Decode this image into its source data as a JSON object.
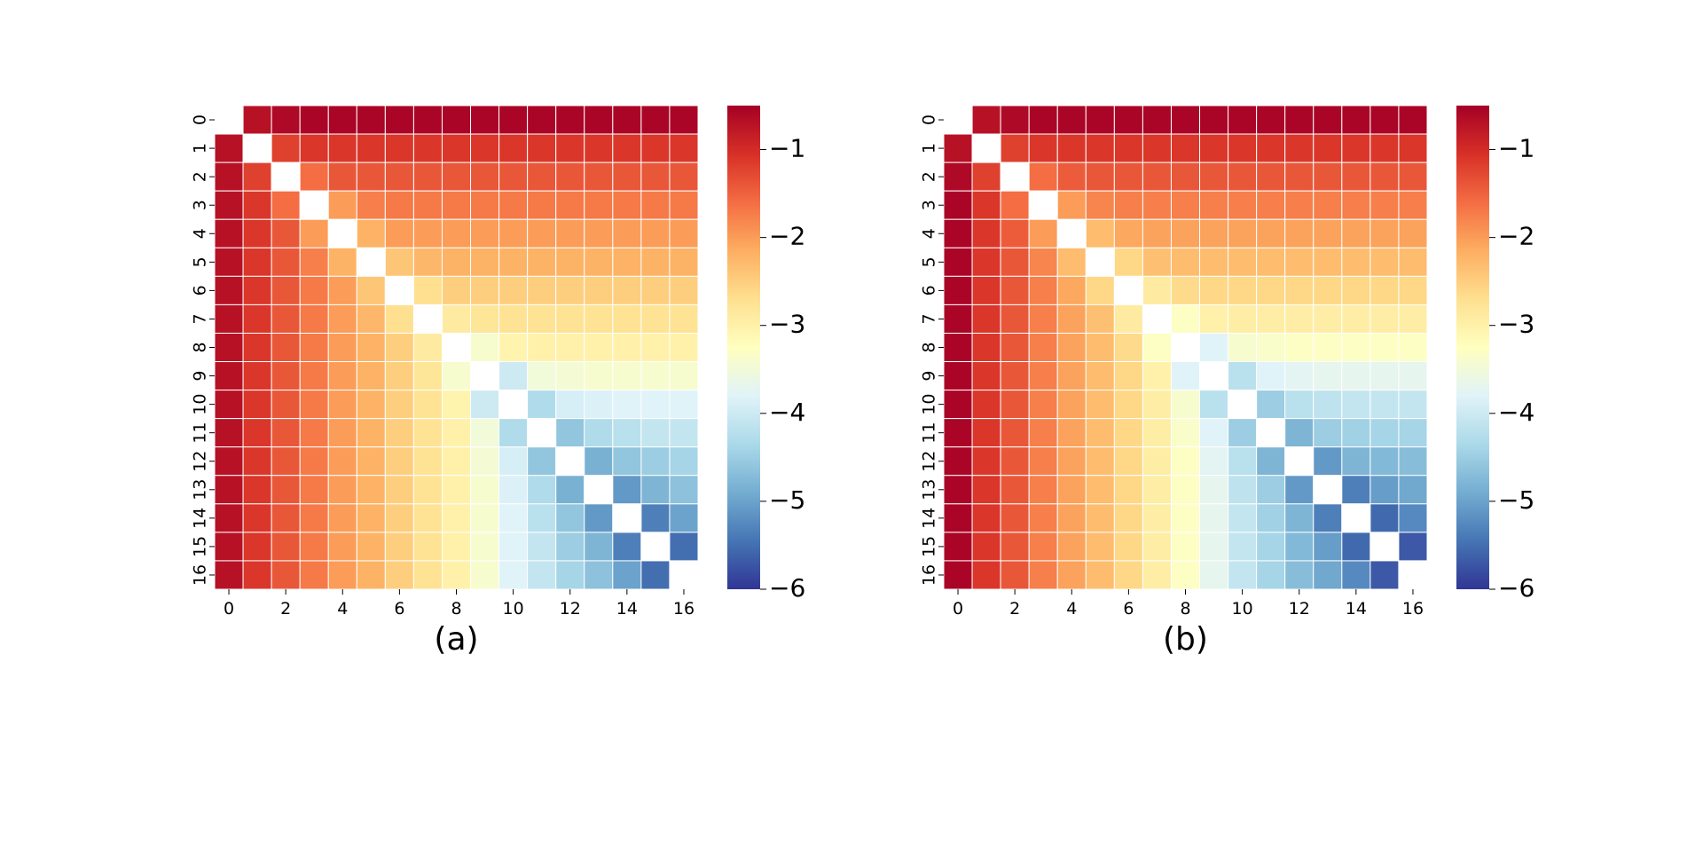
{
  "chart_data": [
    {
      "type": "heatmap",
      "caption": "(a)",
      "x_tick_labels": [
        "0",
        "2",
        "4",
        "6",
        "8",
        "10",
        "12",
        "14",
        "16"
      ],
      "y_tick_labels": [
        "0",
        "1",
        "2",
        "3",
        "4",
        "5",
        "6",
        "7",
        "8",
        "9",
        "10",
        "11",
        "12",
        "13",
        "14",
        "15",
        "16"
      ],
      "colorbar": {
        "colormap": "RdYlBu",
        "range": [
          -6,
          -0.5
        ],
        "ticks": [
          "−1",
          "−2",
          "−3",
          "−4",
          "−5",
          "−6"
        ],
        "tick_values": [
          -1,
          -2,
          -3,
          -4,
          -5,
          -6
        ]
      },
      "grid": true,
      "diagonal_masked": true,
      "values": [
        [
          null,
          -0.7,
          -0.6,
          -0.55,
          -0.55,
          -0.55,
          -0.55,
          -0.55,
          -0.55,
          -0.55,
          -0.55,
          -0.55,
          -0.55,
          -0.55,
          -0.55,
          -0.55,
          -0.55
        ],
        [
          -0.7,
          null,
          -1.2,
          -1.1,
          -1.1,
          -1.1,
          -1.1,
          -1.1,
          -1.1,
          -1.1,
          -1.1,
          -1.1,
          -1.1,
          -1.1,
          -1.1,
          -1.1,
          -1.1
        ],
        [
          -0.7,
          -1.2,
          null,
          -1.6,
          -1.4,
          -1.4,
          -1.4,
          -1.4,
          -1.4,
          -1.4,
          -1.4,
          -1.4,
          -1.4,
          -1.4,
          -1.4,
          -1.4,
          -1.4
        ],
        [
          -0.7,
          -1.1,
          -1.6,
          null,
          -2.0,
          -1.75,
          -1.7,
          -1.7,
          -1.7,
          -1.7,
          -1.7,
          -1.7,
          -1.7,
          -1.7,
          -1.7,
          -1.7,
          -1.7
        ],
        [
          -0.7,
          -1.1,
          -1.4,
          -2.0,
          null,
          -2.2,
          -2.0,
          -2.0,
          -2.0,
          -2.0,
          -2.0,
          -2.0,
          -2.0,
          -2.0,
          -2.0,
          -2.0,
          -2.0
        ],
        [
          -0.7,
          -1.1,
          -1.4,
          -1.75,
          -2.2,
          null,
          -2.4,
          -2.25,
          -2.2,
          -2.2,
          -2.2,
          -2.2,
          -2.2,
          -2.2,
          -2.2,
          -2.2,
          -2.2
        ],
        [
          -0.7,
          -1.1,
          -1.4,
          -1.7,
          -2.0,
          -2.4,
          null,
          -2.7,
          -2.5,
          -2.5,
          -2.5,
          -2.5,
          -2.5,
          -2.5,
          -2.5,
          -2.5,
          -2.5
        ],
        [
          -0.7,
          -1.1,
          -1.4,
          -1.7,
          -2.0,
          -2.25,
          -2.7,
          null,
          -2.9,
          -2.8,
          -2.75,
          -2.75,
          -2.75,
          -2.75,
          -2.75,
          -2.75,
          -2.75
        ],
        [
          -0.7,
          -1.1,
          -1.4,
          -1.7,
          -2.0,
          -2.2,
          -2.5,
          -2.9,
          null,
          -3.4,
          -3.05,
          -3.0,
          -3.0,
          -3.0,
          -3.0,
          -3.0,
          -3.0
        ],
        [
          -0.7,
          -1.1,
          -1.4,
          -1.7,
          -2.0,
          -2.2,
          -2.5,
          -2.8,
          -3.4,
          null,
          -4.0,
          -3.5,
          -3.45,
          -3.4,
          -3.4,
          -3.4,
          -3.4
        ],
        [
          -0.7,
          -1.1,
          -1.4,
          -1.7,
          -2.0,
          -2.2,
          -2.5,
          -2.75,
          -3.05,
          -4.0,
          null,
          -4.3,
          -3.9,
          -3.85,
          -3.8,
          -3.8,
          -3.8
        ],
        [
          -0.7,
          -1.1,
          -1.4,
          -1.7,
          -2.0,
          -2.2,
          -2.5,
          -2.75,
          -3.0,
          -3.5,
          -4.3,
          null,
          -4.6,
          -4.3,
          -4.2,
          -4.1,
          -4.1
        ],
        [
          -0.7,
          -1.1,
          -1.4,
          -1.7,
          -2.0,
          -2.2,
          -2.5,
          -2.75,
          -3.0,
          -3.45,
          -3.9,
          -4.6,
          null,
          -4.85,
          -4.6,
          -4.5,
          -4.4
        ],
        [
          -0.7,
          -1.1,
          -1.4,
          -1.7,
          -2.0,
          -2.2,
          -2.5,
          -2.75,
          -3.0,
          -3.4,
          -3.85,
          -4.3,
          -4.85,
          null,
          -5.1,
          -4.8,
          -4.65
        ],
        [
          -0.7,
          -1.1,
          -1.4,
          -1.7,
          -2.0,
          -2.2,
          -2.5,
          -2.75,
          -3.0,
          -3.4,
          -3.8,
          -4.2,
          -4.6,
          -5.1,
          null,
          -5.35,
          -5.0
        ],
        [
          -0.7,
          -1.1,
          -1.4,
          -1.7,
          -2.0,
          -2.2,
          -2.5,
          -2.75,
          -3.0,
          -3.4,
          -3.8,
          -4.1,
          -4.5,
          -4.8,
          -5.35,
          null,
          -5.5
        ],
        [
          -0.7,
          -1.1,
          -1.4,
          -1.7,
          -2.0,
          -2.2,
          -2.5,
          -2.75,
          -3.0,
          -3.4,
          -3.8,
          -4.1,
          -4.4,
          -4.65,
          -5.0,
          -5.5,
          null
        ]
      ]
    },
    {
      "type": "heatmap",
      "caption": "(b)",
      "x_tick_labels": [
        "0",
        "2",
        "4",
        "6",
        "8",
        "10",
        "12",
        "14",
        "16"
      ],
      "y_tick_labels": [
        "0",
        "1",
        "2",
        "3",
        "4",
        "5",
        "6",
        "7",
        "8",
        "9",
        "10",
        "11",
        "12",
        "13",
        "14",
        "15",
        "16"
      ],
      "colorbar": {
        "colormap": "RdYlBu",
        "range": [
          -6,
          -0.5
        ],
        "ticks": [
          "−1",
          "−2",
          "−3",
          "−4",
          "−5",
          "−6"
        ],
        "tick_values": [
          -1,
          -2,
          -3,
          -4,
          -5,
          -6
        ]
      },
      "grid": true,
      "diagonal_masked": true,
      "values": [
        [
          null,
          -0.7,
          -0.6,
          -0.55,
          -0.55,
          -0.55,
          -0.55,
          -0.55,
          -0.55,
          -0.55,
          -0.55,
          -0.55,
          -0.55,
          -0.55,
          -0.55,
          -0.55,
          -0.55
        ],
        [
          -0.7,
          null,
          -1.2,
          -1.1,
          -1.1,
          -1.1,
          -1.1,
          -1.1,
          -1.1,
          -1.1,
          -1.1,
          -1.1,
          -1.1,
          -1.1,
          -1.1,
          -1.1,
          -1.1
        ],
        [
          -0.6,
          -1.2,
          null,
          -1.6,
          -1.45,
          -1.4,
          -1.4,
          -1.4,
          -1.4,
          -1.4,
          -1.4,
          -1.4,
          -1.4,
          -1.4,
          -1.4,
          -1.4,
          -1.4
        ],
        [
          -0.55,
          -1.1,
          -1.6,
          null,
          -2.0,
          -1.8,
          -1.75,
          -1.75,
          -1.75,
          -1.75,
          -1.75,
          -1.75,
          -1.75,
          -1.75,
          -1.75,
          -1.75,
          -1.75
        ],
        [
          -0.55,
          -1.1,
          -1.45,
          -2.0,
          null,
          -2.3,
          -2.1,
          -2.05,
          -2.05,
          -2.05,
          -2.05,
          -2.05,
          -2.05,
          -2.05,
          -2.05,
          -2.05,
          -2.05
        ],
        [
          -0.55,
          -1.1,
          -1.4,
          -1.8,
          -2.3,
          null,
          -2.6,
          -2.35,
          -2.3,
          -2.3,
          -2.3,
          -2.3,
          -2.3,
          -2.3,
          -2.3,
          -2.3,
          -2.3
        ],
        [
          -0.55,
          -1.1,
          -1.4,
          -1.75,
          -2.1,
          -2.6,
          null,
          -2.9,
          -2.65,
          -2.6,
          -2.6,
          -2.6,
          -2.6,
          -2.6,
          -2.6,
          -2.6,
          -2.6
        ],
        [
          -0.55,
          -1.1,
          -1.4,
          -1.75,
          -2.05,
          -2.35,
          -2.9,
          null,
          -3.3,
          -3.0,
          -2.95,
          -2.95,
          -2.95,
          -2.95,
          -2.95,
          -2.95,
          -2.95
        ],
        [
          -0.55,
          -1.1,
          -1.4,
          -1.75,
          -2.05,
          -2.3,
          -2.65,
          -3.3,
          null,
          -3.8,
          -3.4,
          -3.35,
          -3.3,
          -3.3,
          -3.3,
          -3.3,
          -3.3
        ],
        [
          -0.55,
          -1.1,
          -1.4,
          -1.75,
          -2.05,
          -2.3,
          -2.6,
          -3.0,
          -3.8,
          null,
          -4.2,
          -3.8,
          -3.75,
          -3.7,
          -3.7,
          -3.7,
          -3.7
        ],
        [
          -0.55,
          -1.1,
          -1.4,
          -1.75,
          -2.05,
          -2.3,
          -2.6,
          -2.95,
          -3.4,
          -4.2,
          null,
          -4.5,
          -4.2,
          -4.15,
          -4.1,
          -4.1,
          -4.1
        ],
        [
          -0.55,
          -1.1,
          -1.4,
          -1.75,
          -2.05,
          -2.3,
          -2.6,
          -2.95,
          -3.35,
          -3.8,
          -4.5,
          null,
          -4.8,
          -4.5,
          -4.45,
          -4.4,
          -4.4
        ],
        [
          -0.55,
          -1.1,
          -1.4,
          -1.75,
          -2.05,
          -2.3,
          -2.6,
          -2.95,
          -3.3,
          -3.75,
          -4.2,
          -4.8,
          null,
          -5.1,
          -4.8,
          -4.75,
          -4.7
        ],
        [
          -0.55,
          -1.1,
          -1.4,
          -1.75,
          -2.05,
          -2.3,
          -2.6,
          -2.95,
          -3.3,
          -3.7,
          -4.15,
          -4.5,
          -5.1,
          null,
          -5.35,
          -5.05,
          -4.95
        ],
        [
          -0.55,
          -1.1,
          -1.4,
          -1.75,
          -2.05,
          -2.3,
          -2.6,
          -2.95,
          -3.3,
          -3.7,
          -4.1,
          -4.45,
          -4.8,
          -5.35,
          null,
          -5.55,
          -5.25
        ],
        [
          -0.55,
          -1.1,
          -1.4,
          -1.75,
          -2.05,
          -2.3,
          -2.6,
          -2.95,
          -3.3,
          -3.7,
          -4.1,
          -4.4,
          -4.75,
          -5.05,
          -5.55,
          null,
          -5.7
        ],
        [
          -0.55,
          -1.1,
          -1.4,
          -1.75,
          -2.05,
          -2.3,
          -2.6,
          -2.95,
          -3.3,
          -3.7,
          -4.1,
          -4.4,
          -4.7,
          -4.95,
          -5.25,
          -5.7,
          null
        ]
      ]
    }
  ]
}
